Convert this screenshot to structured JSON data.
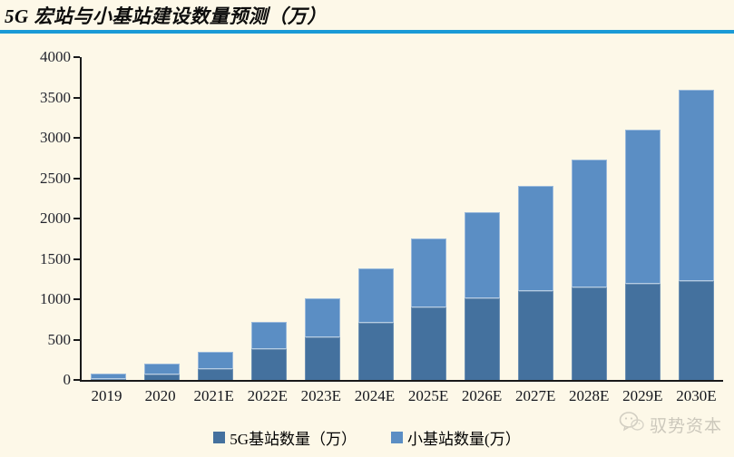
{
  "page": {
    "background": "#FDF8E8"
  },
  "header": {
    "title": "5G 宏站与小基站建设数量预测（万）",
    "rule_color": "#1B9AD6"
  },
  "chart_data": {
    "type": "bar",
    "stacked": true,
    "title": "5G 宏站与小基站建设数量预测（万）",
    "categories": [
      "2019",
      "2020",
      "2021E",
      "2022E",
      "2023E",
      "2024E",
      "2025E",
      "2026E",
      "2027E",
      "2028E",
      "2029E",
      "2030E"
    ],
    "series": [
      {
        "name": "5G基站数量（万）",
        "color": "#44719E",
        "values": [
          15,
          70,
          130,
          380,
          530,
          710,
          900,
          1010,
          1100,
          1150,
          1190,
          1220
        ]
      },
      {
        "name": "小基站数量(万）",
        "color": "#5B8EC4",
        "values": [
          60,
          130,
          220,
          340,
          480,
          670,
          850,
          1070,
          1300,
          1580,
          1910,
          2380
        ]
      }
    ],
    "totals": [
      75,
      200,
      350,
      720,
      1010,
      1380,
      1750,
      2080,
      2400,
      2730,
      3100,
      3600
    ],
    "xlabel": "",
    "ylabel": "",
    "ylim": [
      0,
      4000
    ],
    "y_ticks": [
      0,
      500,
      1000,
      1500,
      2000,
      2500,
      3000,
      3500,
      4000
    ],
    "grid": false,
    "legend_position": "bottom",
    "axis_color": "#1a1a1a",
    "background": "#FDF8E8"
  },
  "watermark": {
    "icon": "wechat-icon",
    "label": "驭势资本"
  }
}
